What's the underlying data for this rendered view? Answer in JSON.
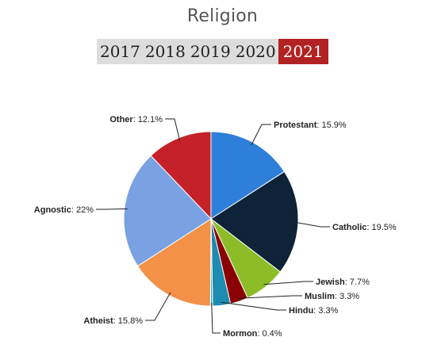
{
  "title": "Religion",
  "years": [
    "2017",
    "2018",
    "2019",
    "2020",
    "2021"
  ],
  "active_year": "2021",
  "chart_data": {
    "type": "pie",
    "title": "Religion",
    "slices": [
      {
        "name": "Protestant",
        "value": 15.9,
        "label": "15.9%",
        "color": "#2e7fd9"
      },
      {
        "name": "Catholic",
        "value": 19.5,
        "label": "19.5%",
        "color": "#0e2238"
      },
      {
        "name": "Jewish",
        "value": 7.7,
        "label": "7.7%",
        "color": "#8cbd28"
      },
      {
        "name": "Muslim",
        "value": 3.3,
        "label": "3.3%",
        "color": "#8b0000"
      },
      {
        "name": "Hindu",
        "value": 3.3,
        "label": "3.3%",
        "color": "#1e8bb0"
      },
      {
        "name": "Mormon",
        "value": 0.4,
        "label": "0.4%",
        "color": "#26b5d6"
      },
      {
        "name": "Atheist",
        "value": 15.8,
        "label": "15.8%",
        "color": "#f39148"
      },
      {
        "name": "Agnostic",
        "value": 22,
        "label": "22%",
        "color": "#7aa2e3"
      },
      {
        "name": "Other",
        "value": 12.1,
        "label": "12.1%",
        "color": "#c42128"
      }
    ]
  }
}
